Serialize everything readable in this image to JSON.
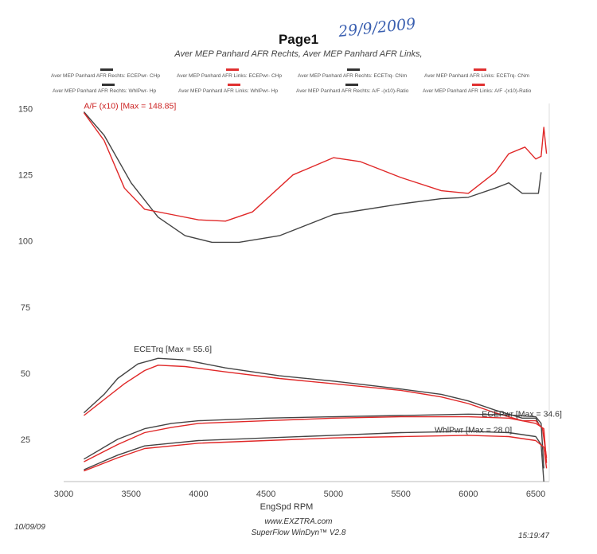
{
  "page": {
    "title": "Page1",
    "subtitle": "Aver MEP Panhard AFR Rechts, Aver MEP Panhard AFR Links,",
    "handwritten": "29/9/2009"
  },
  "legend": [
    {
      "label": "Aver MEP Panhard AFR Rechts: ECEPwr- CHp",
      "color": "#333333"
    },
    {
      "label": "Aver MEP Panhard AFR Links: ECEPwr- CHp",
      "color": "#e03030"
    },
    {
      "label": "Aver MEP Panhard AFR Rechts: ECETrq- CNm",
      "color": "#333333"
    },
    {
      "label": "Aver MEP Panhard AFR Links: ECETrq- CNm",
      "color": "#e03030"
    },
    {
      "label": "Aver MEP Panhard AFR Rechts: WhlPwr- Hp",
      "color": "#333333"
    },
    {
      "label": "Aver MEP Panhard AFR Links: WhlPwr- Hp",
      "color": "#e03030"
    },
    {
      "label": "Aver MEP Panhard AFR Rechts: A/F -(x10)-Ratio",
      "color": "#333333"
    },
    {
      "label": "Aver MEP Panhard AFR Links: A/F -(x10)-Ratio",
      "color": "#e03030"
    }
  ],
  "footer": {
    "date": "10/09/09",
    "url": "www.EXZTRA.com",
    "software": "SuperFlow WinDyn™ V2.8",
    "time": "15:19:47"
  },
  "chart_data": {
    "type": "line",
    "xlabel": "EngSpd RPM",
    "ylabel": "",
    "xlim": [
      3000,
      6600
    ],
    "ylim": [
      9,
      152
    ],
    "xticks": [
      3000,
      3500,
      4000,
      4500,
      5000,
      5500,
      6000,
      6500
    ],
    "yticks": [
      25,
      50,
      75,
      100,
      125,
      150
    ],
    "grid": false,
    "annotations": [
      {
        "text": "A/F  (x10) [Max = 148.85]",
        "x": 3150,
        "y": 150,
        "color": "#cc2222"
      },
      {
        "text": "ECETrq [Max = 55.6]",
        "x": 3520,
        "y": 58,
        "color": "#333333"
      },
      {
        "text": "ECEPwr [Max = 34.6]",
        "x": 6100,
        "y": 33.5,
        "color": "#333333"
      },
      {
        "text": "WhlPwr [Max = 28.0]",
        "x": 5750,
        "y": 27.5,
        "color": "#333333"
      }
    ],
    "series": [
      {
        "color": "#444444",
        "x": [
          3150,
          3300,
          3500,
          3700,
          3900,
          4100,
          4300,
          4600,
          5000,
          5500,
          5800,
          6000,
          6200,
          6300,
          6400,
          6520,
          6540
        ],
        "y": [
          148.85,
          140,
          122,
          109,
          102,
          99.5,
          99.5,
          102,
          110,
          114,
          116,
          116.5,
          120,
          122,
          118,
          118,
          126
        ]
      },
      {
        "color": "#e02828",
        "x": [
          3150,
          3300,
          3450,
          3600,
          3800,
          4000,
          4200,
          4400,
          4700,
          5000,
          5200,
          5500,
          5800,
          6000,
          6200,
          6300,
          6420,
          6500,
          6540,
          6560,
          6580
        ],
        "y": [
          148.5,
          138,
          120,
          112,
          110,
          108,
          107.5,
          111,
          125,
          131.5,
          130,
          124,
          119,
          118,
          126,
          133,
          135.5,
          131,
          132,
          143,
          133
        ]
      },
      {
        "color": "#444444",
        "x": [
          3150,
          3300,
          3400,
          3550,
          3700,
          3900,
          4200,
          4600,
          5000,
          5500,
          5800,
          6000,
          6200,
          6400,
          6500,
          6530
        ],
        "y": [
          35,
          42,
          48,
          53.5,
          55.6,
          55,
          52,
          49,
          47,
          44,
          42,
          39.5,
          36,
          33,
          33,
          30
        ]
      },
      {
        "color": "#e02828",
        "x": [
          3150,
          3300,
          3450,
          3600,
          3700,
          3900,
          4200,
          4600,
          5000,
          5500,
          5800,
          6000,
          6200,
          6400,
          6500,
          6550,
          6580
        ],
        "y": [
          34,
          40,
          46,
          51,
          53,
          52.5,
          50.5,
          48,
          46,
          43.5,
          41,
          38.5,
          35,
          32,
          32,
          29,
          18
        ]
      },
      {
        "color": "#444444",
        "x": [
          3150,
          3400,
          3600,
          3800,
          4000,
          4500,
          5000,
          5500,
          6000,
          6300,
          6500,
          6540,
          6560
        ],
        "y": [
          17.5,
          25,
          29,
          31,
          32,
          33,
          33.5,
          34,
          34.5,
          34.2,
          33.5,
          31,
          14
        ]
      },
      {
        "color": "#e02828",
        "x": [
          3150,
          3400,
          3600,
          3800,
          4000,
          4500,
          5000,
          5500,
          6000,
          6300,
          6500,
          6560,
          6580
        ],
        "y": [
          16.5,
          23,
          27.5,
          29.5,
          31,
          32,
          33,
          33.5,
          33.5,
          33,
          31,
          29,
          16
        ]
      },
      {
        "color": "#444444",
        "x": [
          3150,
          3400,
          3600,
          3800,
          4000,
          4500,
          5000,
          5500,
          6000,
          6300,
          6500,
          6540,
          6560
        ],
        "y": [
          13.5,
          19,
          22.5,
          23.5,
          24.5,
          25.5,
          26.5,
          27.5,
          28,
          27.5,
          26,
          23,
          9
        ]
      },
      {
        "color": "#e02828",
        "x": [
          3150,
          3400,
          3600,
          3800,
          4000,
          4500,
          5000,
          5500,
          6000,
          6300,
          6500,
          6560,
          6580
        ],
        "y": [
          13,
          18,
          21.5,
          22.5,
          23.5,
          24.5,
          25.5,
          26,
          26.5,
          26,
          24.5,
          22,
          14
        ]
      }
    ]
  }
}
